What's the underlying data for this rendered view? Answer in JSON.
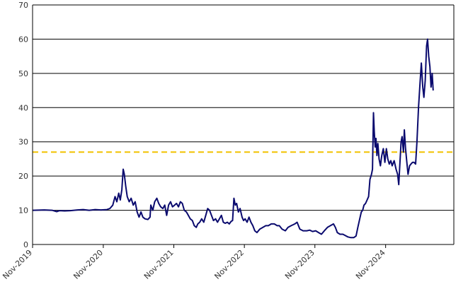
{
  "chart_data": {
    "type": "line",
    "title": "",
    "xlabel": "",
    "ylabel": "",
    "ylim": [
      0,
      70
    ],
    "yticks": [
      0,
      10,
      20,
      30,
      40,
      50,
      60,
      70
    ],
    "xlim": [
      "2019-11-01",
      "2025-10-20"
    ],
    "xticks": [
      {
        "date": "2019-11-01",
        "label": "Nov-2019"
      },
      {
        "date": "2020-11-01",
        "label": "Nov-2020"
      },
      {
        "date": "2021-11-01",
        "label": "Nov-2021"
      },
      {
        "date": "2022-11-01",
        "label": "Nov-2022"
      },
      {
        "date": "2023-11-01",
        "label": "Nov-2023"
      },
      {
        "date": "2024-11-01",
        "label": "Nov-2024"
      }
    ],
    "grid": {
      "horizontal": true,
      "vertical": false
    },
    "reference_line": {
      "y": 27,
      "style": "dashed",
      "color": "#f2c200"
    },
    "series": [
      {
        "color": "#0a0a6e",
        "points": [
          [
            "2019-11-01",
            10.0
          ],
          [
            "2020-01-01",
            10.1
          ],
          [
            "2020-02-10",
            10.0
          ],
          [
            "2020-03-05",
            9.6
          ],
          [
            "2020-03-20",
            9.9
          ],
          [
            "2020-04-15",
            9.8
          ],
          [
            "2020-05-15",
            9.9
          ],
          [
            "2020-06-20",
            10.1
          ],
          [
            "2020-07-20",
            10.2
          ],
          [
            "2020-08-20",
            10.0
          ],
          [
            "2020-09-20",
            10.2
          ],
          [
            "2020-10-20",
            10.1
          ],
          [
            "2020-11-20",
            10.2
          ],
          [
            "2020-12-05",
            10.5
          ],
          [
            "2020-12-20",
            11.5
          ],
          [
            "2021-01-01",
            14.0
          ],
          [
            "2021-01-10",
            12.5
          ],
          [
            "2021-01-20",
            15.0
          ],
          [
            "2021-01-28",
            13.0
          ],
          [
            "2021-02-05",
            16.0
          ],
          [
            "2021-02-12",
            22.0
          ],
          [
            "2021-02-18",
            20.5
          ],
          [
            "2021-02-25",
            17.0
          ],
          [
            "2021-03-05",
            14.0
          ],
          [
            "2021-03-15",
            12.5
          ],
          [
            "2021-03-25",
            13.5
          ],
          [
            "2021-04-05",
            11.5
          ],
          [
            "2021-04-15",
            12.5
          ],
          [
            "2021-04-25",
            9.5
          ],
          [
            "2021-05-05",
            8.0
          ],
          [
            "2021-05-15",
            9.5
          ],
          [
            "2021-05-25",
            8.0
          ],
          [
            "2021-06-05",
            7.5
          ],
          [
            "2021-06-20",
            7.3
          ],
          [
            "2021-07-01",
            8.0
          ],
          [
            "2021-07-05",
            11.5
          ],
          [
            "2021-07-15",
            10.0
          ],
          [
            "2021-07-25",
            12.5
          ],
          [
            "2021-08-05",
            13.5
          ],
          [
            "2021-08-15",
            12.0
          ],
          [
            "2021-08-25",
            11.0
          ],
          [
            "2021-09-05",
            10.5
          ],
          [
            "2021-09-15",
            11.5
          ],
          [
            "2021-09-25",
            8.5
          ],
          [
            "2021-10-05",
            11.5
          ],
          [
            "2021-10-15",
            12.5
          ],
          [
            "2021-10-25",
            11.0
          ],
          [
            "2021-11-05",
            11.5
          ],
          [
            "2021-11-15",
            12.0
          ],
          [
            "2021-11-25",
            11.0
          ],
          [
            "2021-12-05",
            12.5
          ],
          [
            "2021-12-15",
            12.0
          ],
          [
            "2021-12-25",
            10.0
          ],
          [
            "2022-01-05",
            9.5
          ],
          [
            "2022-01-15",
            8.5
          ],
          [
            "2022-01-25",
            7.5
          ],
          [
            "2022-02-05",
            7.0
          ],
          [
            "2022-02-15",
            5.5
          ],
          [
            "2022-02-25",
            5.0
          ],
          [
            "2022-03-05",
            6.0
          ],
          [
            "2022-03-15",
            6.5
          ],
          [
            "2022-03-25",
            7.5
          ],
          [
            "2022-04-05",
            6.5
          ],
          [
            "2022-04-15",
            8.5
          ],
          [
            "2022-04-25",
            10.5
          ],
          [
            "2022-05-05",
            10.0
          ],
          [
            "2022-05-15",
            8.5
          ],
          [
            "2022-05-25",
            7.0
          ],
          [
            "2022-06-05",
            7.5
          ],
          [
            "2022-06-15",
            6.5
          ],
          [
            "2022-06-25",
            7.5
          ],
          [
            "2022-07-05",
            8.5
          ],
          [
            "2022-07-15",
            6.5
          ],
          [
            "2022-07-25",
            6.2
          ],
          [
            "2022-08-05",
            6.5
          ],
          [
            "2022-08-15",
            6.0
          ],
          [
            "2022-08-25",
            6.8
          ],
          [
            "2022-09-01",
            7.0
          ],
          [
            "2022-09-08",
            13.5
          ],
          [
            "2022-09-15",
            11.5
          ],
          [
            "2022-09-22",
            12.0
          ],
          [
            "2022-10-01",
            9.5
          ],
          [
            "2022-10-10",
            10.5
          ],
          [
            "2022-10-20",
            8.0
          ],
          [
            "2022-10-28",
            7.0
          ],
          [
            "2022-11-05",
            7.5
          ],
          [
            "2022-11-15",
            6.5
          ],
          [
            "2022-11-25",
            8.0
          ],
          [
            "2022-12-05",
            6.5
          ],
          [
            "2022-12-15",
            5.5
          ],
          [
            "2022-12-25",
            4.0
          ],
          [
            "2023-01-05",
            3.5
          ],
          [
            "2023-01-20",
            4.5
          ],
          [
            "2023-02-05",
            5.0
          ],
          [
            "2023-02-20",
            5.5
          ],
          [
            "2023-03-05",
            5.5
          ],
          [
            "2023-03-20",
            6.0
          ],
          [
            "2023-04-05",
            6.0
          ],
          [
            "2023-04-20",
            5.5
          ],
          [
            "2023-05-01",
            5.5
          ],
          [
            "2023-05-15",
            4.5
          ],
          [
            "2023-06-01",
            4.0
          ],
          [
            "2023-06-15",
            5.0
          ],
          [
            "2023-07-01",
            5.5
          ],
          [
            "2023-07-20",
            6.0
          ],
          [
            "2023-08-01",
            6.5
          ],
          [
            "2023-08-15",
            4.5
          ],
          [
            "2023-09-01",
            4.0
          ],
          [
            "2023-09-20",
            4.0
          ],
          [
            "2023-10-05",
            4.2
          ],
          [
            "2023-10-20",
            3.8
          ],
          [
            "2023-11-05",
            4.0
          ],
          [
            "2023-11-20",
            3.5
          ],
          [
            "2023-12-05",
            3.0
          ],
          [
            "2023-12-20",
            4.0
          ],
          [
            "2024-01-05",
            5.0
          ],
          [
            "2024-01-20",
            5.5
          ],
          [
            "2024-02-05",
            6.0
          ],
          [
            "2024-02-15",
            5.0
          ],
          [
            "2024-02-25",
            3.5
          ],
          [
            "2024-03-10",
            3.0
          ],
          [
            "2024-03-25",
            3.0
          ],
          [
            "2024-04-10",
            2.5
          ],
          [
            "2024-04-20",
            2.2
          ],
          [
            "2024-05-05",
            2.0
          ],
          [
            "2024-05-20",
            2.0
          ],
          [
            "2024-06-01",
            2.5
          ],
          [
            "2024-06-10",
            5.0
          ],
          [
            "2024-06-20",
            7.5
          ],
          [
            "2024-06-28",
            9.5
          ],
          [
            "2024-07-05",
            10.0
          ],
          [
            "2024-07-12",
            11.5
          ],
          [
            "2024-07-20",
            12.0
          ],
          [
            "2024-07-28",
            13.0
          ],
          [
            "2024-08-05",
            14.0
          ],
          [
            "2024-08-12",
            19.0
          ],
          [
            "2024-08-20",
            20.5
          ],
          [
            "2024-08-25",
            22.0
          ],
          [
            "2024-08-30",
            38.5
          ],
          [
            "2024-09-03",
            33.0
          ],
          [
            "2024-09-08",
            28.5
          ],
          [
            "2024-09-12",
            31.0
          ],
          [
            "2024-09-17",
            26.0
          ],
          [
            "2024-09-22",
            29.5
          ],
          [
            "2024-09-28",
            25.0
          ],
          [
            "2024-10-05",
            23.0
          ],
          [
            "2024-10-12",
            26.0
          ],
          [
            "2024-10-20",
            28.0
          ],
          [
            "2024-10-28",
            24.0
          ],
          [
            "2024-11-05",
            28.0
          ],
          [
            "2024-11-12",
            25.0
          ],
          [
            "2024-11-20",
            23.5
          ],
          [
            "2024-11-28",
            24.5
          ],
          [
            "2024-12-05",
            23.0
          ],
          [
            "2024-12-15",
            24.5
          ],
          [
            "2024-12-25",
            22.0
          ],
          [
            "2025-01-02",
            20.5
          ],
          [
            "2025-01-08",
            17.5
          ],
          [
            "2025-01-14",
            24.0
          ],
          [
            "2025-01-20",
            30.0
          ],
          [
            "2025-01-25",
            31.5
          ],
          [
            "2025-02-01",
            27.0
          ],
          [
            "2025-02-06",
            33.5
          ],
          [
            "2025-02-12",
            28.0
          ],
          [
            "2025-02-18",
            24.5
          ],
          [
            "2025-02-25",
            20.5
          ],
          [
            "2025-03-05",
            23.0
          ],
          [
            "2025-03-12",
            23.5
          ],
          [
            "2025-03-20",
            24.0
          ],
          [
            "2025-03-28",
            24.0
          ],
          [
            "2025-04-05",
            23.5
          ],
          [
            "2025-04-12",
            30.0
          ],
          [
            "2025-04-20",
            40.0
          ],
          [
            "2025-04-28",
            47.0
          ],
          [
            "2025-05-05",
            53.0
          ],
          [
            "2025-05-12",
            46.0
          ],
          [
            "2025-05-18",
            43.0
          ],
          [
            "2025-05-25",
            48.0
          ],
          [
            "2025-06-01",
            58.0
          ],
          [
            "2025-06-06",
            60.0
          ],
          [
            "2025-06-12",
            55.0
          ],
          [
            "2025-06-18",
            52.0
          ],
          [
            "2025-06-24",
            46.0
          ],
          [
            "2025-06-30",
            50.0
          ],
          [
            "2025-07-05",
            45.0
          ]
        ]
      }
    ]
  }
}
